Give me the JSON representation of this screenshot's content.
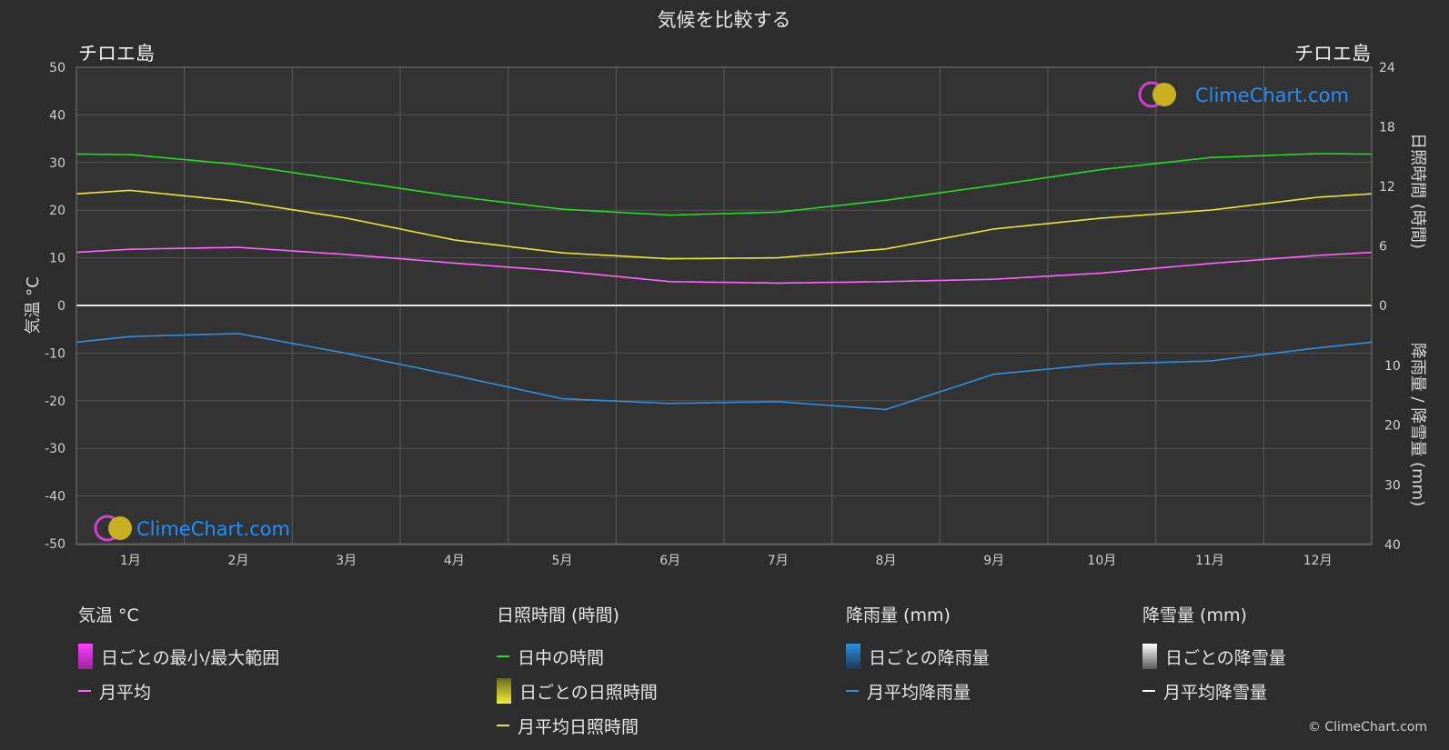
{
  "header": {
    "title": "気候を比較する",
    "location_left": "チロエ島",
    "location_right": "チロエ島"
  },
  "brand": {
    "name": "ClimeChart.com",
    "copyright": "© ClimeChart.com"
  },
  "colors": {
    "background": "#2d2d2d",
    "daylight": "#22dd22",
    "sunshine_avg": "#e8e830",
    "sunshine_bar": "#8c8c2a",
    "temp_range": "#c040c0",
    "temp_avg": "#ff66ff",
    "rain_avg": "#2f8fe0",
    "rain_bar": "#1e5f94",
    "snow_avg": "#ffffff",
    "brand_text": "#1e90ff"
  },
  "chart_data": {
    "type": "line",
    "title": "気候を比較する",
    "categories": [
      "1月",
      "2月",
      "3月",
      "4月",
      "5月",
      "6月",
      "7月",
      "8月",
      "9月",
      "10月",
      "11月",
      "12月"
    ],
    "left_axis": {
      "label": "気温 °C",
      "min": -50,
      "max": 50,
      "ticks": [
        50,
        40,
        30,
        20,
        10,
        0,
        -10,
        -20,
        -30,
        -40,
        -50
      ]
    },
    "right_axis_top": {
      "label": "日照時間 (時間)",
      "min": 0,
      "max": 24,
      "ticks": [
        24,
        18,
        12,
        6,
        0
      ]
    },
    "right_axis_bottom": {
      "label": "降雨量 / 降雪量 (mm)",
      "min": 0,
      "max": 40,
      "ticks": [
        0,
        10,
        20,
        30,
        40
      ]
    },
    "grid": true,
    "series": [
      {
        "name": "日中の時間",
        "axis": "sunshine_hours",
        "values": [
          15.2,
          14.2,
          12.6,
          11.0,
          9.7,
          9.1,
          9.4,
          10.6,
          12.1,
          13.7,
          14.9,
          15.3
        ]
      },
      {
        "name": "月平均日照時間",
        "axis": "sunshine_hours",
        "values": [
          11.6,
          10.5,
          8.8,
          6.6,
          5.3,
          4.7,
          4.8,
          5.7,
          7.7,
          8.8,
          9.6,
          10.9
        ]
      },
      {
        "name": "月平均",
        "axis": "temperature_c",
        "values": [
          11.8,
          12.2,
          10.7,
          8.9,
          7.2,
          5.0,
          4.7,
          5.0,
          5.5,
          6.8,
          8.8,
          10.5
        ]
      },
      {
        "name": "月平均降雨量",
        "axis": "precipitation_mm",
        "values": [
          5.2,
          4.7,
          8.0,
          11.7,
          15.6,
          16.4,
          16.1,
          17.4,
          11.5,
          9.8,
          9.3,
          7.1
        ]
      },
      {
        "name": "月平均降雪量",
        "axis": "precipitation_mm",
        "values": [
          0,
          0,
          0,
          0,
          0,
          0,
          0,
          0,
          0,
          0,
          0,
          0
        ]
      }
    ]
  },
  "legend": {
    "temperature": {
      "header": "気温 °C",
      "items": [
        "日ごとの最小/最大範囲",
        "月平均"
      ]
    },
    "sunshine": {
      "header": "日照時間 (時間)",
      "items": [
        "日中の時間",
        "日ごとの日照時間",
        "月平均日照時間"
      ]
    },
    "rain": {
      "header": "降雨量 (mm)",
      "items": [
        "日ごとの降雨量",
        "月平均降雨量"
      ]
    },
    "snow": {
      "header": "降雪量 (mm)",
      "items": [
        "日ごとの降雪量",
        "月平均降雪量"
      ]
    }
  }
}
